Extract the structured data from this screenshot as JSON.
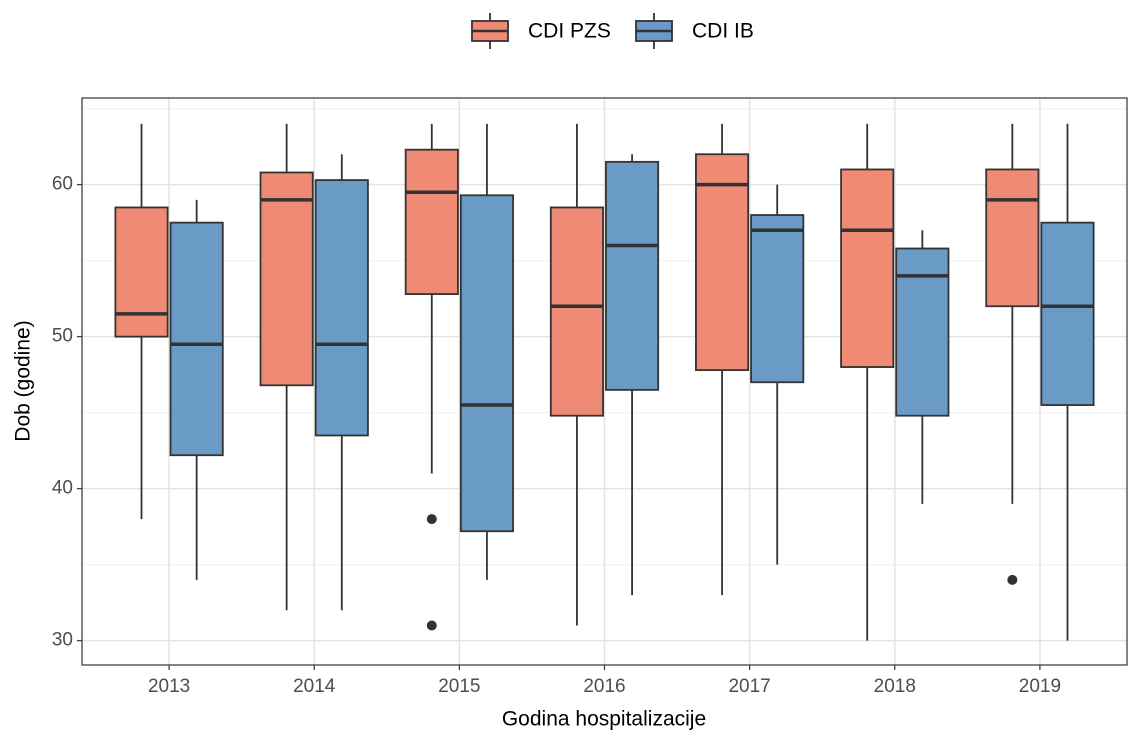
{
  "chart_data": {
    "type": "box",
    "x_label": "Godina hospitalizacije",
    "y_label": "Dob (godine)",
    "categories": [
      "2013",
      "2014",
      "2015",
      "2016",
      "2017",
      "2018",
      "2019"
    ],
    "ylim": [
      28.4,
      65.7
    ],
    "yticks": [
      30,
      40,
      50,
      60
    ],
    "minor_yticks": [
      35,
      45,
      55,
      65
    ],
    "grid": true,
    "legend": "top",
    "series": [
      {
        "name": "CDI PZS",
        "color": "#ef8a74",
        "min": [
          38,
          32,
          41,
          31,
          33,
          30,
          39
        ],
        "q1": [
          50,
          46.8,
          52.8,
          44.8,
          47.8,
          48,
          52
        ],
        "median": [
          51.5,
          59,
          59.5,
          52,
          60,
          57,
          59
        ],
        "q3": [
          58.5,
          60.8,
          62.3,
          58.5,
          62,
          61,
          61
        ],
        "max": [
          64,
          64,
          64,
          64,
          64,
          64,
          64
        ],
        "outliers": [
          [],
          [],
          [
            38,
            31
          ],
          [],
          [],
          [],
          [
            34
          ]
        ]
      },
      {
        "name": "CDI IB",
        "color": "#699bc6",
        "min": [
          34,
          32,
          34,
          33,
          35,
          39,
          30
        ],
        "q1": [
          42.2,
          43.5,
          37.2,
          46.5,
          47,
          44.8,
          45.5
        ],
        "median": [
          49.5,
          49.5,
          45.5,
          56,
          57,
          54,
          52
        ],
        "q3": [
          57.5,
          60.3,
          59.3,
          61.5,
          58,
          55.8,
          57.5
        ],
        "max": [
          59,
          62,
          64,
          62,
          60,
          57,
          64
        ],
        "outliers": [
          [],
          [],
          [],
          [],
          [],
          [],
          []
        ]
      }
    ]
  }
}
